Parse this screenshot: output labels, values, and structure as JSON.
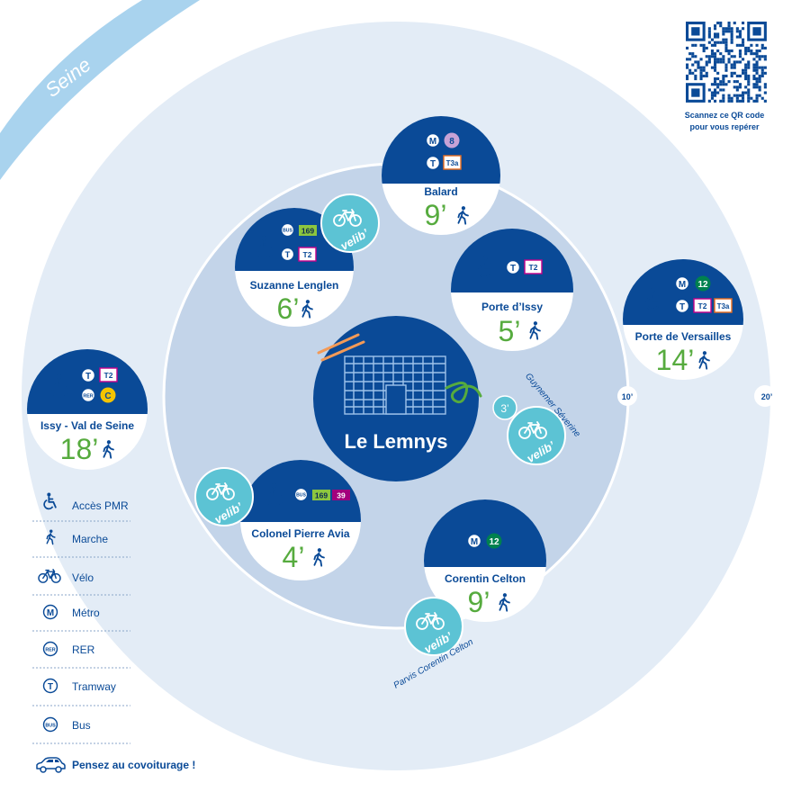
{
  "river": {
    "label": "Seine"
  },
  "qr": {
    "caption_line1": "Scannez ce QR code",
    "caption_line2": "pour vous repérer"
  },
  "center": {
    "label": "Le Lemnys"
  },
  "rings": {
    "inner": "10’",
    "outer": "20’"
  },
  "stations": {
    "balard": {
      "name": "Balard",
      "minutes": "9’",
      "lines": [
        "8",
        "T3a"
      ]
    },
    "suzanne": {
      "name": "Suzanne Lenglen",
      "minutes": "6’",
      "lines": [
        "169",
        "T2"
      ]
    },
    "porte_issy": {
      "name": "Porte d’Issy",
      "minutes": "5’",
      "lines": [
        "T2"
      ]
    },
    "porte_versailles": {
      "name": "Porte de Versailles",
      "minutes": "14’",
      "lines": [
        "12",
        "T2",
        "T3a"
      ]
    },
    "issy": {
      "name": "Issy - Val de Seine",
      "minutes": "18’",
      "lines": [
        "T2",
        "C"
      ]
    },
    "colonel": {
      "name": "Colonel Pierre Avia",
      "minutes": "4’",
      "lines": [
        "169",
        "39"
      ]
    },
    "corentin": {
      "name": "Corentin Celton",
      "minutes": "9’",
      "lines": [
        "12"
      ]
    }
  },
  "velib": {
    "brand": "velib’",
    "guynemer": {
      "name": "Guynemer Séverine",
      "minutes": "3’"
    },
    "parvis": {
      "name": "Parvis Corentin Celton"
    }
  },
  "legend": {
    "items": [
      {
        "icon": "wheelchair-icon",
        "label": "Accès PMR"
      },
      {
        "icon": "walk-icon",
        "label": "Marche"
      },
      {
        "icon": "bike-icon",
        "label": "Vélo"
      },
      {
        "icon": "metro-icon",
        "label": "Métro"
      },
      {
        "icon": "rer-icon",
        "label": "RER"
      },
      {
        "icon": "tram-icon",
        "label": "Tramway"
      },
      {
        "icon": "bus-icon",
        "label": "Bus"
      }
    ],
    "carpool": "Pensez au covoiturage !"
  },
  "colors": {
    "navy": "#0a4a97",
    "ring_outer": "#e3ecf6",
    "ring_inner": "#c3d4e9",
    "teal": "#5cc3d4",
    "green": "#56ab3e",
    "seine": "#a9d3ee",
    "line8": "#c7a2d6",
    "line12": "#00814f",
    "line169": "#8cc63f",
    "line39": "#a3007d",
    "tram": "#c4008a",
    "rer_c": "#f5c400"
  }
}
